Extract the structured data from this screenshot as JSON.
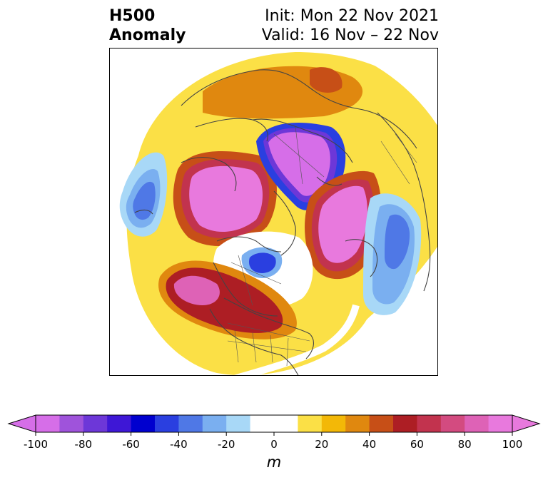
{
  "title": {
    "left_line1": "H500",
    "left_line2": "Anomaly",
    "right_line1": "Init: Mon 22 Nov 2021",
    "right_line2": "Valid: 16 Nov – 22 Nov"
  },
  "colorbar": {
    "unit": "m",
    "ticks": [
      "-100",
      "-80",
      "-60",
      "-40",
      "-20",
      "0",
      "20",
      "40",
      "60",
      "80",
      "100"
    ],
    "levels": [
      -100,
      -90,
      -80,
      -70,
      -60,
      -50,
      -40,
      -30,
      -20,
      -10,
      10,
      20,
      30,
      40,
      50,
      60,
      70,
      80,
      90,
      100
    ],
    "colors": [
      "#d66ee8",
      "#9f53db",
      "#6d37d8",
      "#3e17d6",
      "#0000cf",
      "#2a3fe0",
      "#4f78e6",
      "#7aaff0",
      "#a8d8f7",
      "#ffffff",
      "#ffffff",
      "#fbe046",
      "#f3b807",
      "#e0880f",
      "#c74f17",
      "#ad1e24",
      "#c2334e",
      "#d34b80",
      "#de62b6",
      "#e879dd"
    ],
    "extend": "both",
    "under_color": "#d66ee8",
    "over_color": "#e879dd"
  }
}
